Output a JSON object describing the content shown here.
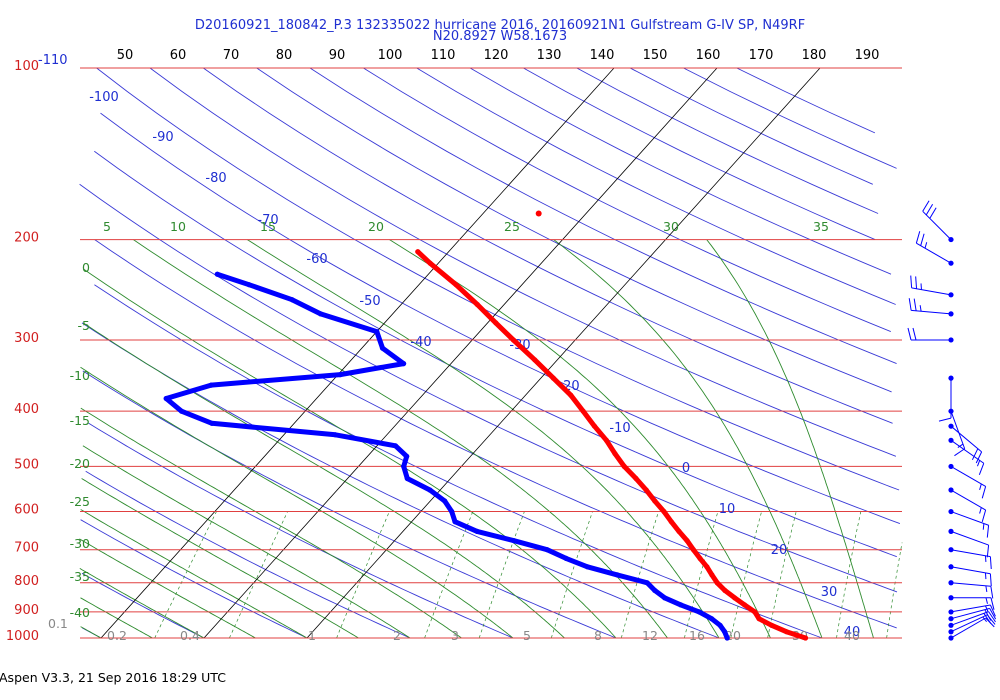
{
  "header": {
    "title": "D20160921_180842_P.3 132335022 hurricane 2016, 20160921N1 Gulfstream G-IV SP, N49RF",
    "subtitle": "N20.8927 W58.1673"
  },
  "footer": {
    "text": "Aspen V3.3, 21 Sep 2016  18:29 UTC"
  },
  "colors": {
    "temperature": "#ff0000",
    "dewpoint": "#0000ff",
    "isobar": "#e04040",
    "isotherm": "#000000",
    "dry_adiabat": "#3a3ad6",
    "moist_adiabat": "#2e8b2e",
    "mixing_ratio": "#2e8b2e"
  },
  "chart_data": {
    "type": "line",
    "subtype": "skew-T log-P sounding",
    "pressure_levels_hPa": [
      "1000",
      "900",
      "800",
      "700",
      "600",
      "500",
      "400",
      "300",
      "200",
      "100"
    ],
    "temperature_ticks_C": [
      "40",
      "30",
      "20",
      "10",
      "0",
      "-10",
      "-20",
      "-30",
      "-40"
    ],
    "top_ticks": [
      "50",
      "60",
      "70",
      "80",
      "90",
      "100",
      "110",
      "120",
      "130",
      "140",
      "150",
      "160",
      "170",
      "180",
      "190"
    ],
    "corner_labels": {
      "blue": "-110",
      "gray": "0.1"
    },
    "dry_adiabat_labels": [
      "-100",
      "-90",
      "-80",
      "-70",
      "-60",
      "-50",
      "-40",
      "-30",
      "-20",
      "-10",
      "0",
      "10",
      "20",
      "30",
      "40"
    ],
    "moist_adiabat_top_labels": [
      "5",
      "10",
      "15",
      "20",
      "25",
      "30",
      "35"
    ],
    "moist_adiabat_left_labels": [
      "0",
      "-5",
      "-10",
      "-15",
      "-20",
      "-25",
      "-30",
      "-35",
      "-40"
    ],
    "mixing_ratio_labels": [
      "0.2",
      "0.4",
      "1",
      "2",
      "3",
      "5",
      "8",
      "12",
      "16",
      "20",
      "30",
      "40"
    ],
    "ylim_hPa": [
      1000,
      100
    ],
    "series": [
      {
        "name": "Temperature",
        "points": [
          [
            1000,
            28.4
          ],
          [
            975,
            26.0
          ],
          [
            950,
            24.0
          ],
          [
            925,
            22.2
          ],
          [
            900,
            21.2
          ],
          [
            875,
            19.6
          ],
          [
            850,
            18.0
          ],
          [
            825,
            16.4
          ],
          [
            800,
            15.0
          ],
          [
            775,
            13.8
          ],
          [
            750,
            12.6
          ],
          [
            725,
            11.2
          ],
          [
            700,
            9.8
          ],
          [
            675,
            8.4
          ],
          [
            650,
            6.8
          ],
          [
            625,
            5.2
          ],
          [
            600,
            3.6
          ],
          [
            575,
            1.8
          ],
          [
            550,
            0.0
          ],
          [
            525,
            -2.0
          ],
          [
            500,
            -4.2
          ],
          [
            475,
            -6.2
          ],
          [
            450,
            -8.2
          ],
          [
            425,
            -10.6
          ],
          [
            400,
            -13.0
          ],
          [
            375,
            -15.6
          ],
          [
            350,
            -18.8
          ],
          [
            325,
            -22.2
          ],
          [
            300,
            -26.0
          ],
          [
            280,
            -29.2
          ],
          [
            260,
            -32.6
          ],
          [
            240,
            -36.4
          ],
          [
            220,
            -40.8
          ],
          [
            210,
            -43.0
          ]
        ]
      },
      {
        "name": "Dewpoint",
        "points": [
          [
            1000,
            20.8
          ],
          [
            975,
            20.0
          ],
          [
            950,
            19.0
          ],
          [
            925,
            17.6
          ],
          [
            900,
            15.8
          ],
          [
            875,
            13.4
          ],
          [
            850,
            11.2
          ],
          [
            825,
            9.6
          ],
          [
            800,
            8.2
          ],
          [
            775,
            4.6
          ],
          [
            750,
            1.0
          ],
          [
            725,
            -1.8
          ],
          [
            700,
            -4.4
          ],
          [
            675,
            -8.4
          ],
          [
            650,
            -12.8
          ],
          [
            625,
            -15.8
          ],
          [
            600,
            -17.0
          ],
          [
            575,
            -18.6
          ],
          [
            550,
            -21.0
          ],
          [
            525,
            -24.2
          ],
          [
            500,
            -25.6
          ],
          [
            480,
            -26.2
          ],
          [
            460,
            -28.2
          ],
          [
            440,
            -35.0
          ],
          [
            420,
            -48.0
          ],
          [
            400,
            -52.0
          ],
          [
            380,
            -54.6
          ],
          [
            360,
            -51.4
          ],
          [
            345,
            -39.8
          ],
          [
            330,
            -34.6
          ],
          [
            310,
            -38.0
          ],
          [
            290,
            -40.0
          ],
          [
            270,
            -47.0
          ],
          [
            255,
            -51.0
          ],
          [
            240,
            -56.5
          ],
          [
            230,
            -60.5
          ]
        ]
      }
    ],
    "wind_barbs": [
      {
        "pressure_hPa": 1000,
        "speed_kt": 10,
        "dir_deg": 60
      },
      {
        "pressure_hPa": 975,
        "speed_kt": 15,
        "dir_deg": 65
      },
      {
        "pressure_hPa": 950,
        "speed_kt": 20,
        "dir_deg": 70
      },
      {
        "pressure_hPa": 925,
        "speed_kt": 20,
        "dir_deg": 75
      },
      {
        "pressure_hPa": 900,
        "speed_kt": 15,
        "dir_deg": 80
      },
      {
        "pressure_hPa": 850,
        "speed_kt": 15,
        "dir_deg": 90
      },
      {
        "pressure_hPa": 800,
        "speed_kt": 15,
        "dir_deg": 95
      },
      {
        "pressure_hPa": 750,
        "speed_kt": 15,
        "dir_deg": 100
      },
      {
        "pressure_hPa": 700,
        "speed_kt": 15,
        "dir_deg": 100
      },
      {
        "pressure_hPa": 650,
        "speed_kt": 10,
        "dir_deg": 110
      },
      {
        "pressure_hPa": 600,
        "speed_kt": 15,
        "dir_deg": 110
      },
      {
        "pressure_hPa": 550,
        "speed_kt": 15,
        "dir_deg": 120
      },
      {
        "pressure_hPa": 500,
        "speed_kt": 15,
        "dir_deg": 120
      },
      {
        "pressure_hPa": 450,
        "speed_kt": 15,
        "dir_deg": 125
      },
      {
        "pressure_hPa": 425,
        "speed_kt": 20,
        "dir_deg": 130
      },
      {
        "pressure_hPa": 400,
        "speed_kt": 15,
        "dir_deg": 160
      },
      {
        "pressure_hPa": 350,
        "speed_kt": 10,
        "dir_deg": 180
      },
      {
        "pressure_hPa": 300,
        "speed_kt": 20,
        "dir_deg": 270
      },
      {
        "pressure_hPa": 270,
        "speed_kt": 25,
        "dir_deg": 275
      },
      {
        "pressure_hPa": 250,
        "speed_kt": 25,
        "dir_deg": 280
      },
      {
        "pressure_hPa": 220,
        "speed_kt": 25,
        "dir_deg": 300
      },
      {
        "pressure_hPa": 200,
        "speed_kt": 30,
        "dir_deg": 315
      }
    ]
  }
}
